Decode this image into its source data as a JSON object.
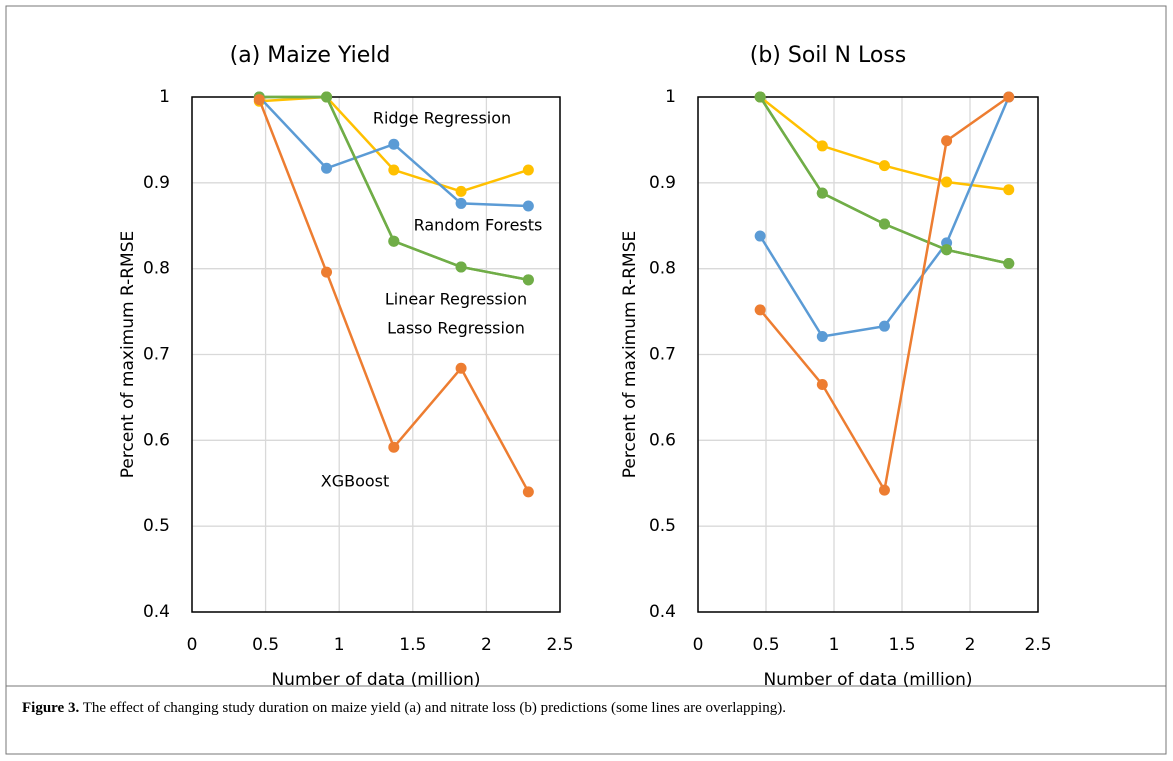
{
  "chart_data": [
    {
      "type": "line",
      "title": "(a) Maize Yield",
      "xlabel": "Number of data (million)",
      "ylabel": "Percent of maximum R-RMSE",
      "x": [
        0.457,
        0.914,
        1.371,
        1.828,
        2.285
      ],
      "series": [
        {
          "name": "Ridge Regression",
          "color": "#FFC000",
          "values": [
            0.995,
            1.0,
            0.915,
            0.89,
            0.915
          ]
        },
        {
          "name": "Random Forests",
          "color": "#5B9BD5",
          "values": [
            1.0,
            0.917,
            0.945,
            0.876,
            0.873
          ]
        },
        {
          "name": "Linear Regression",
          "color": "#70AD47",
          "values": [
            1.0,
            1.0,
            0.832,
            0.802,
            0.787
          ]
        },
        {
          "name": "Lasso Regression",
          "color": "#70AD47",
          "values": [
            1.0,
            1.0,
            0.832,
            0.802,
            0.787
          ]
        },
        {
          "name": "XGBoost",
          "color": "#ED7D31",
          "values": [
            0.997,
            0.796,
            0.592,
            0.684,
            0.54
          ]
        }
      ],
      "xlim": [
        0,
        2.5
      ],
      "xticks": [
        0,
        0.5,
        1,
        1.5,
        2,
        2.5
      ],
      "ylim": [
        0.4,
        1
      ],
      "yticks": [
        0.4,
        0.5,
        0.6,
        0.7,
        0.8,
        0.9,
        1
      ],
      "grid": true
    },
    {
      "type": "line",
      "title": "(b) Soil N Loss",
      "xlabel": "Number of data (million)",
      "ylabel": "Percent of maximum R-RMSE",
      "x": [
        0.457,
        0.914,
        1.371,
        1.828,
        2.285
      ],
      "series": [
        {
          "color": "#FFC000",
          "values": [
            1.0,
            0.943,
            0.92,
            0.901,
            0.892
          ]
        },
        {
          "color": "#5B9BD5",
          "values": [
            0.838,
            0.721,
            0.733,
            0.83,
            1.0
          ]
        },
        {
          "color": "#70AD47",
          "values": [
            1.0,
            0.888,
            0.852,
            0.822,
            0.806
          ]
        },
        {
          "color": "#70AD47",
          "values": [
            1.0,
            0.888,
            0.852,
            0.822,
            0.806
          ]
        },
        {
          "color": "#ED7D31",
          "values": [
            0.752,
            0.665,
            0.542,
            0.949,
            1.0
          ]
        }
      ],
      "xlim": [
        0,
        2.5
      ],
      "xticks": [
        0,
        0.5,
        1,
        1.5,
        2,
        2.5
      ],
      "ylim": [
        0.4,
        1
      ],
      "yticks": [
        0.4,
        0.5,
        0.6,
        0.7,
        0.8,
        0.9,
        1
      ],
      "grid": true
    }
  ],
  "caption": {
    "label": "Figure 3.",
    "text": "The effect of changing study duration on maize yield (a) and nitrate loss (b) predictions (some lines are overlapping)."
  }
}
